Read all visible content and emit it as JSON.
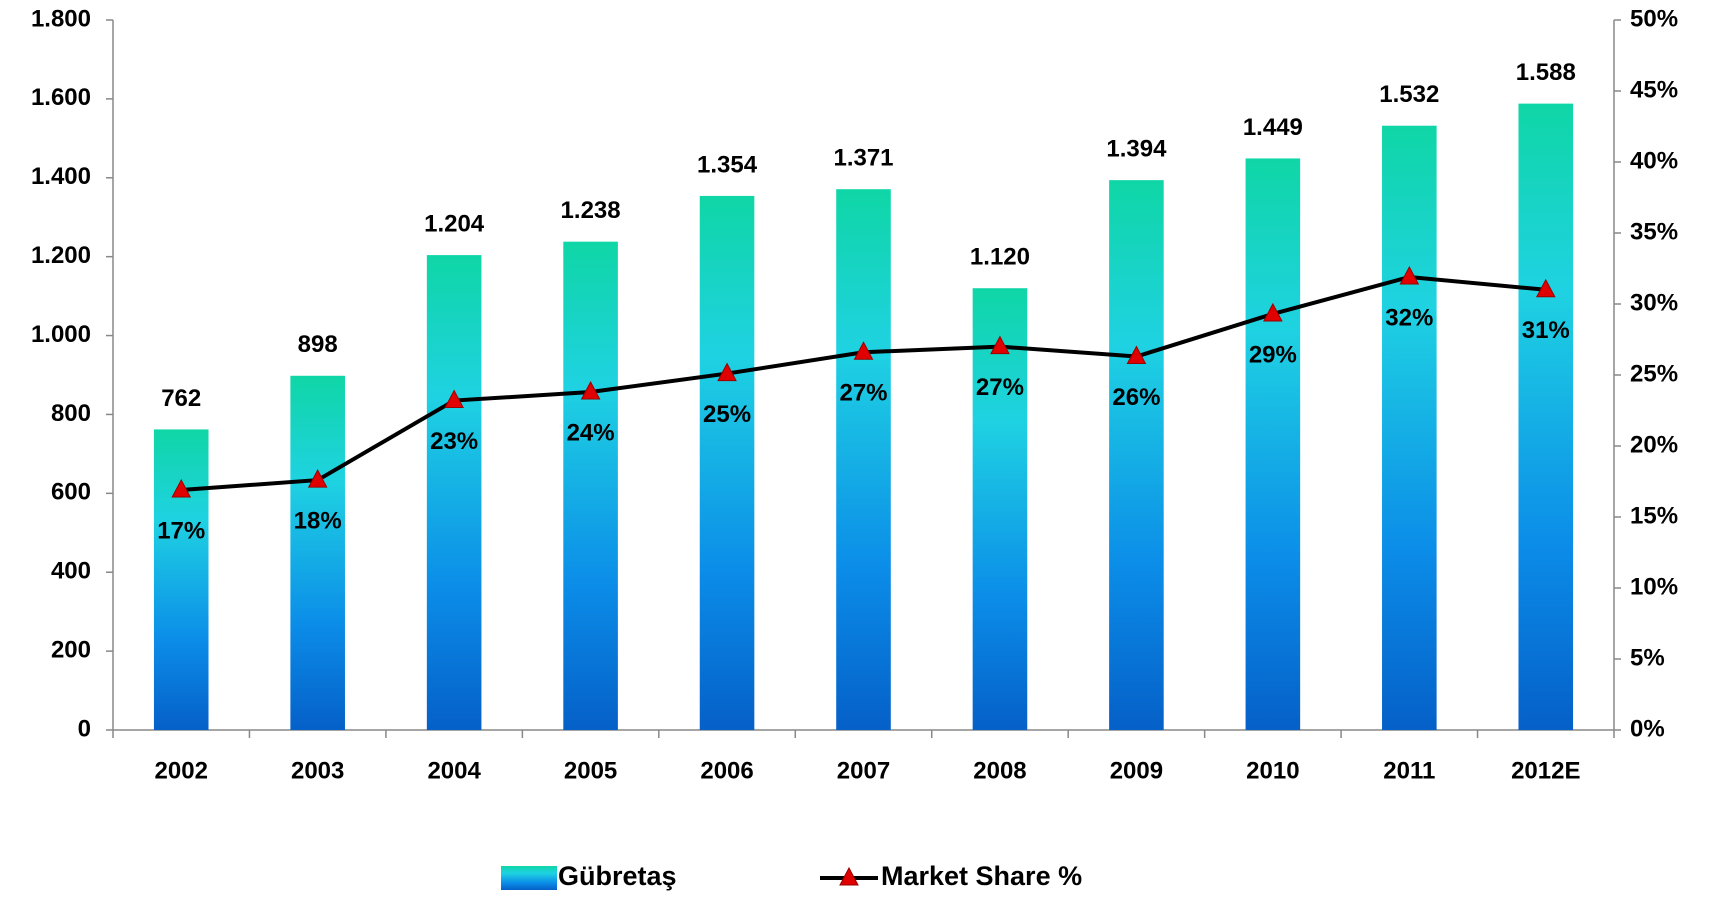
{
  "chart_data": {
    "type": "bar_line",
    "categories": [
      "2002",
      "2003",
      "2004",
      "2005",
      "2006",
      "2007",
      "2008",
      "2009",
      "2010",
      "2011",
      "2012E"
    ],
    "series": [
      {
        "name": "Gübretaş",
        "type": "bar",
        "color": "#0a8ae6",
        "values": [
          762,
          898,
          1204,
          1238,
          1354,
          1371,
          1120,
          1394,
          1449,
          1532,
          1588
        ],
        "value_labels": [
          "762",
          "898",
          "1.204",
          "1.238",
          "1.354",
          "1.371",
          "1.120",
          "1.394",
          "1.449",
          "1.532",
          "1.588"
        ]
      },
      {
        "name": "Market Share %",
        "type": "line",
        "axis": "y2",
        "color": "#000000",
        "marker_color": "#e00000",
        "values": [
          16.9,
          17.6,
          23.2,
          23.8,
          25.1,
          26.6,
          27.0,
          26.3,
          29.3,
          31.9,
          31.0
        ],
        "value_labels": [
          "17%",
          "18%",
          "23%",
          "24%",
          "25%",
          "27%",
          "27%",
          "26%",
          "29%",
          "32%",
          "31%"
        ]
      }
    ],
    "ylim": [
      0,
      1800
    ],
    "yticks": [
      0,
      200,
      400,
      600,
      800,
      {
        "value": 1000,
        "label": "1.000"
      },
      {
        "value": 1200,
        "label": "1.200"
      },
      {
        "value": 1400,
        "label": "1.400"
      },
      {
        "value": 1600,
        "label": "1.600"
      },
      {
        "value": 1800,
        "label": "1.800"
      }
    ],
    "y2lim": [
      0,
      50
    ],
    "y2ticks": [
      {
        "value": 0,
        "label": "0%"
      },
      {
        "value": 5,
        "label": "5%"
      },
      {
        "value": 10,
        "label": "10%"
      },
      {
        "value": 15,
        "label": "15%"
      },
      {
        "value": 20,
        "label": "20%"
      },
      {
        "value": 25,
        "label": "25%"
      },
      {
        "value": 30,
        "label": "30%"
      },
      {
        "value": 35,
        "label": "35%"
      },
      {
        "value": 40,
        "label": "40%"
      },
      {
        "value": 45,
        "label": "45%"
      },
      {
        "value": 50,
        "label": "50%"
      }
    ],
    "legend": "bottom"
  }
}
